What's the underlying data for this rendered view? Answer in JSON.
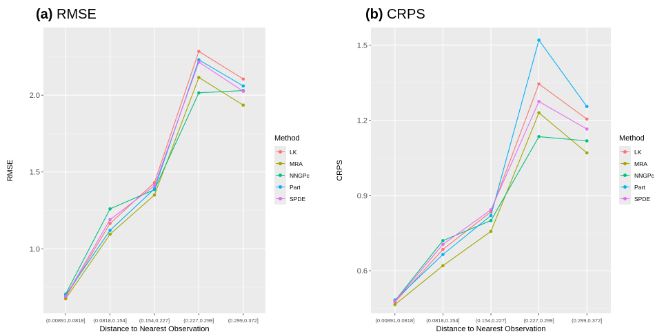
{
  "panels": [
    {
      "id": "a",
      "title_bold": "(a)",
      "title_text": " RMSE"
    },
    {
      "id": "b",
      "title_bold": "(b)",
      "title_text": " CRPS"
    }
  ],
  "chart_data": [
    {
      "type": "line",
      "title": "(a) RMSE",
      "xlabel": "Distance to Nearest Observation",
      "ylabel": "RMSE",
      "categories": [
        "(0.00891,0.0818]",
        "(0.0818,0.154]",
        "(0.154,0.227]",
        "(0.227,0.299]",
        "(0.299,0.372]"
      ],
      "ylim": [
        0.58,
        2.44
      ],
      "yticks": [
        1.0,
        1.5,
        2.0
      ],
      "ytick_labels": [
        "1.0",
        "1.5",
        "2.0"
      ],
      "grid": true,
      "legend_title": "Method",
      "legend_position": "right",
      "series": [
        {
          "name": "LK",
          "color": "#F8766D",
          "values": [
            0.685,
            1.165,
            1.43,
            2.285,
            2.105
          ]
        },
        {
          "name": "MRA",
          "color": "#A3A500",
          "values": [
            0.675,
            1.095,
            1.35,
            2.115,
            1.935
          ]
        },
        {
          "name": "NNGPc",
          "color": "#00BF7D",
          "values": [
            0.705,
            1.26,
            1.385,
            2.015,
            2.03
          ]
        },
        {
          "name": "Part",
          "color": "#00B0F6",
          "values": [
            0.7,
            1.12,
            1.39,
            2.23,
            2.06
          ]
        },
        {
          "name": "SPDE",
          "color": "#E76BF3",
          "values": [
            0.69,
            1.19,
            1.41,
            2.215,
            2.025
          ]
        }
      ]
    },
    {
      "type": "line",
      "title": "(b) CRPS",
      "xlabel": "Distance to Nearest Observation",
      "ylabel": "CRPS",
      "categories": [
        "(0.00891,0.0818]",
        "(0.0818,0.154]",
        "(0.154,0.227]",
        "(0.227,0.299]",
        "(0.299,0.372]"
      ],
      "ylim": [
        0.43,
        1.57
      ],
      "yticks": [
        0.6,
        0.9,
        1.2,
        1.5
      ],
      "ytick_labels": [
        "0.6",
        "0.9",
        "1.2",
        "1.5"
      ],
      "grid": true,
      "legend_title": "Method",
      "legend_position": "right",
      "series": [
        {
          "name": "LK",
          "color": "#F8766D",
          "values": [
            0.475,
            0.685,
            0.835,
            1.345,
            1.205
          ]
        },
        {
          "name": "MRA",
          "color": "#A3A500",
          "values": [
            0.465,
            0.62,
            0.757,
            1.23,
            1.07
          ]
        },
        {
          "name": "NNGPc",
          "color": "#00BF7D",
          "values": [
            0.48,
            0.72,
            0.8,
            1.135,
            1.118
          ]
        },
        {
          "name": "Part",
          "color": "#00B0F6",
          "values": [
            0.483,
            0.665,
            0.82,
            1.52,
            1.255
          ]
        },
        {
          "name": "SPDE",
          "color": "#E76BF3",
          "values": [
            0.478,
            0.705,
            0.843,
            1.275,
            1.165
          ]
        }
      ]
    }
  ]
}
